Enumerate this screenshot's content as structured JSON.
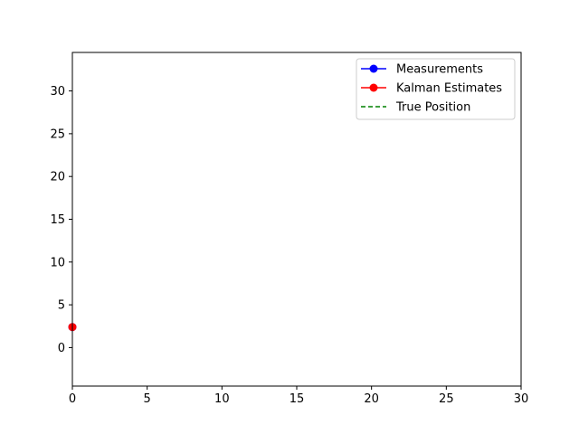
{
  "chart_data": {
    "type": "line",
    "title": "",
    "xlabel": "",
    "ylabel": "",
    "xlim": [
      0,
      30
    ],
    "ylim": [
      -4.5,
      34.5
    ],
    "xticks": [
      0,
      5,
      10,
      15,
      20,
      25,
      30
    ],
    "yticks": [
      0,
      5,
      10,
      15,
      20,
      25,
      30
    ],
    "grid": false,
    "legend_position": "upper right",
    "series": [
      {
        "name": "Measurements",
        "color": "#0000ff",
        "style": "solid",
        "marker": "circle",
        "x": [
          0
        ],
        "y": [
          2.4
        ]
      },
      {
        "name": "Kalman Estimates",
        "color": "#ff0000",
        "style": "solid",
        "marker": "circle",
        "x": [
          0
        ],
        "y": [
          2.4
        ]
      },
      {
        "name": "True Position",
        "color": "#008000",
        "style": "dashed",
        "marker": "none",
        "x": [],
        "y": []
      }
    ]
  }
}
